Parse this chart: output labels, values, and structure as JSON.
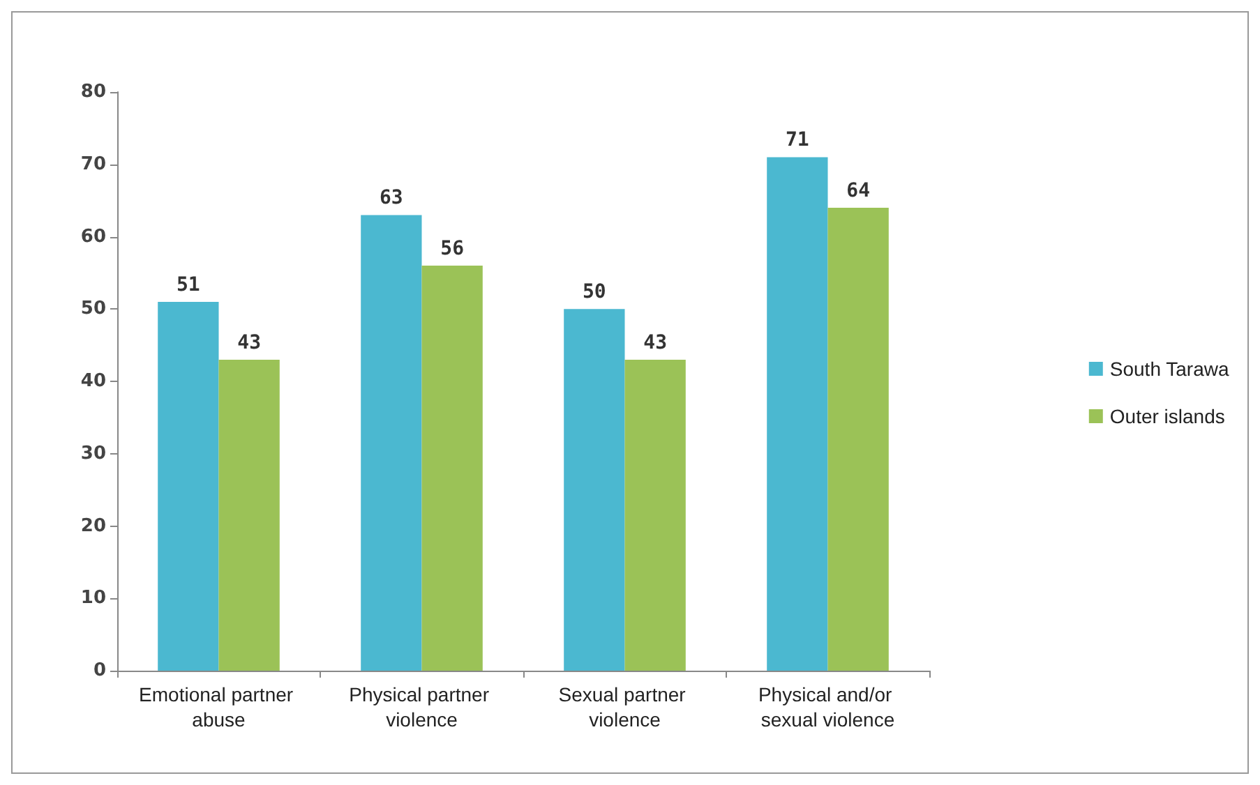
{
  "chart_data": {
    "type": "bar",
    "categories": [
      "Emotional partner abuse",
      "Physical partner violence",
      "Sexual partner violence",
      "Physical and/or sexual violence"
    ],
    "series": [
      {
        "name": "South Tarawa",
        "color": "#4bb8d0",
        "values": [
          51,
          63,
          50,
          71
        ]
      },
      {
        "name": "Outer islands",
        "color": "#9bc257",
        "values": [
          43,
          56,
          43,
          64
        ]
      }
    ],
    "ylim": [
      0,
      80
    ],
    "yticks": [
      0,
      10,
      20,
      30,
      40,
      50,
      60,
      70,
      80
    ],
    "grid": false,
    "legend": "right",
    "data_labels": true
  }
}
